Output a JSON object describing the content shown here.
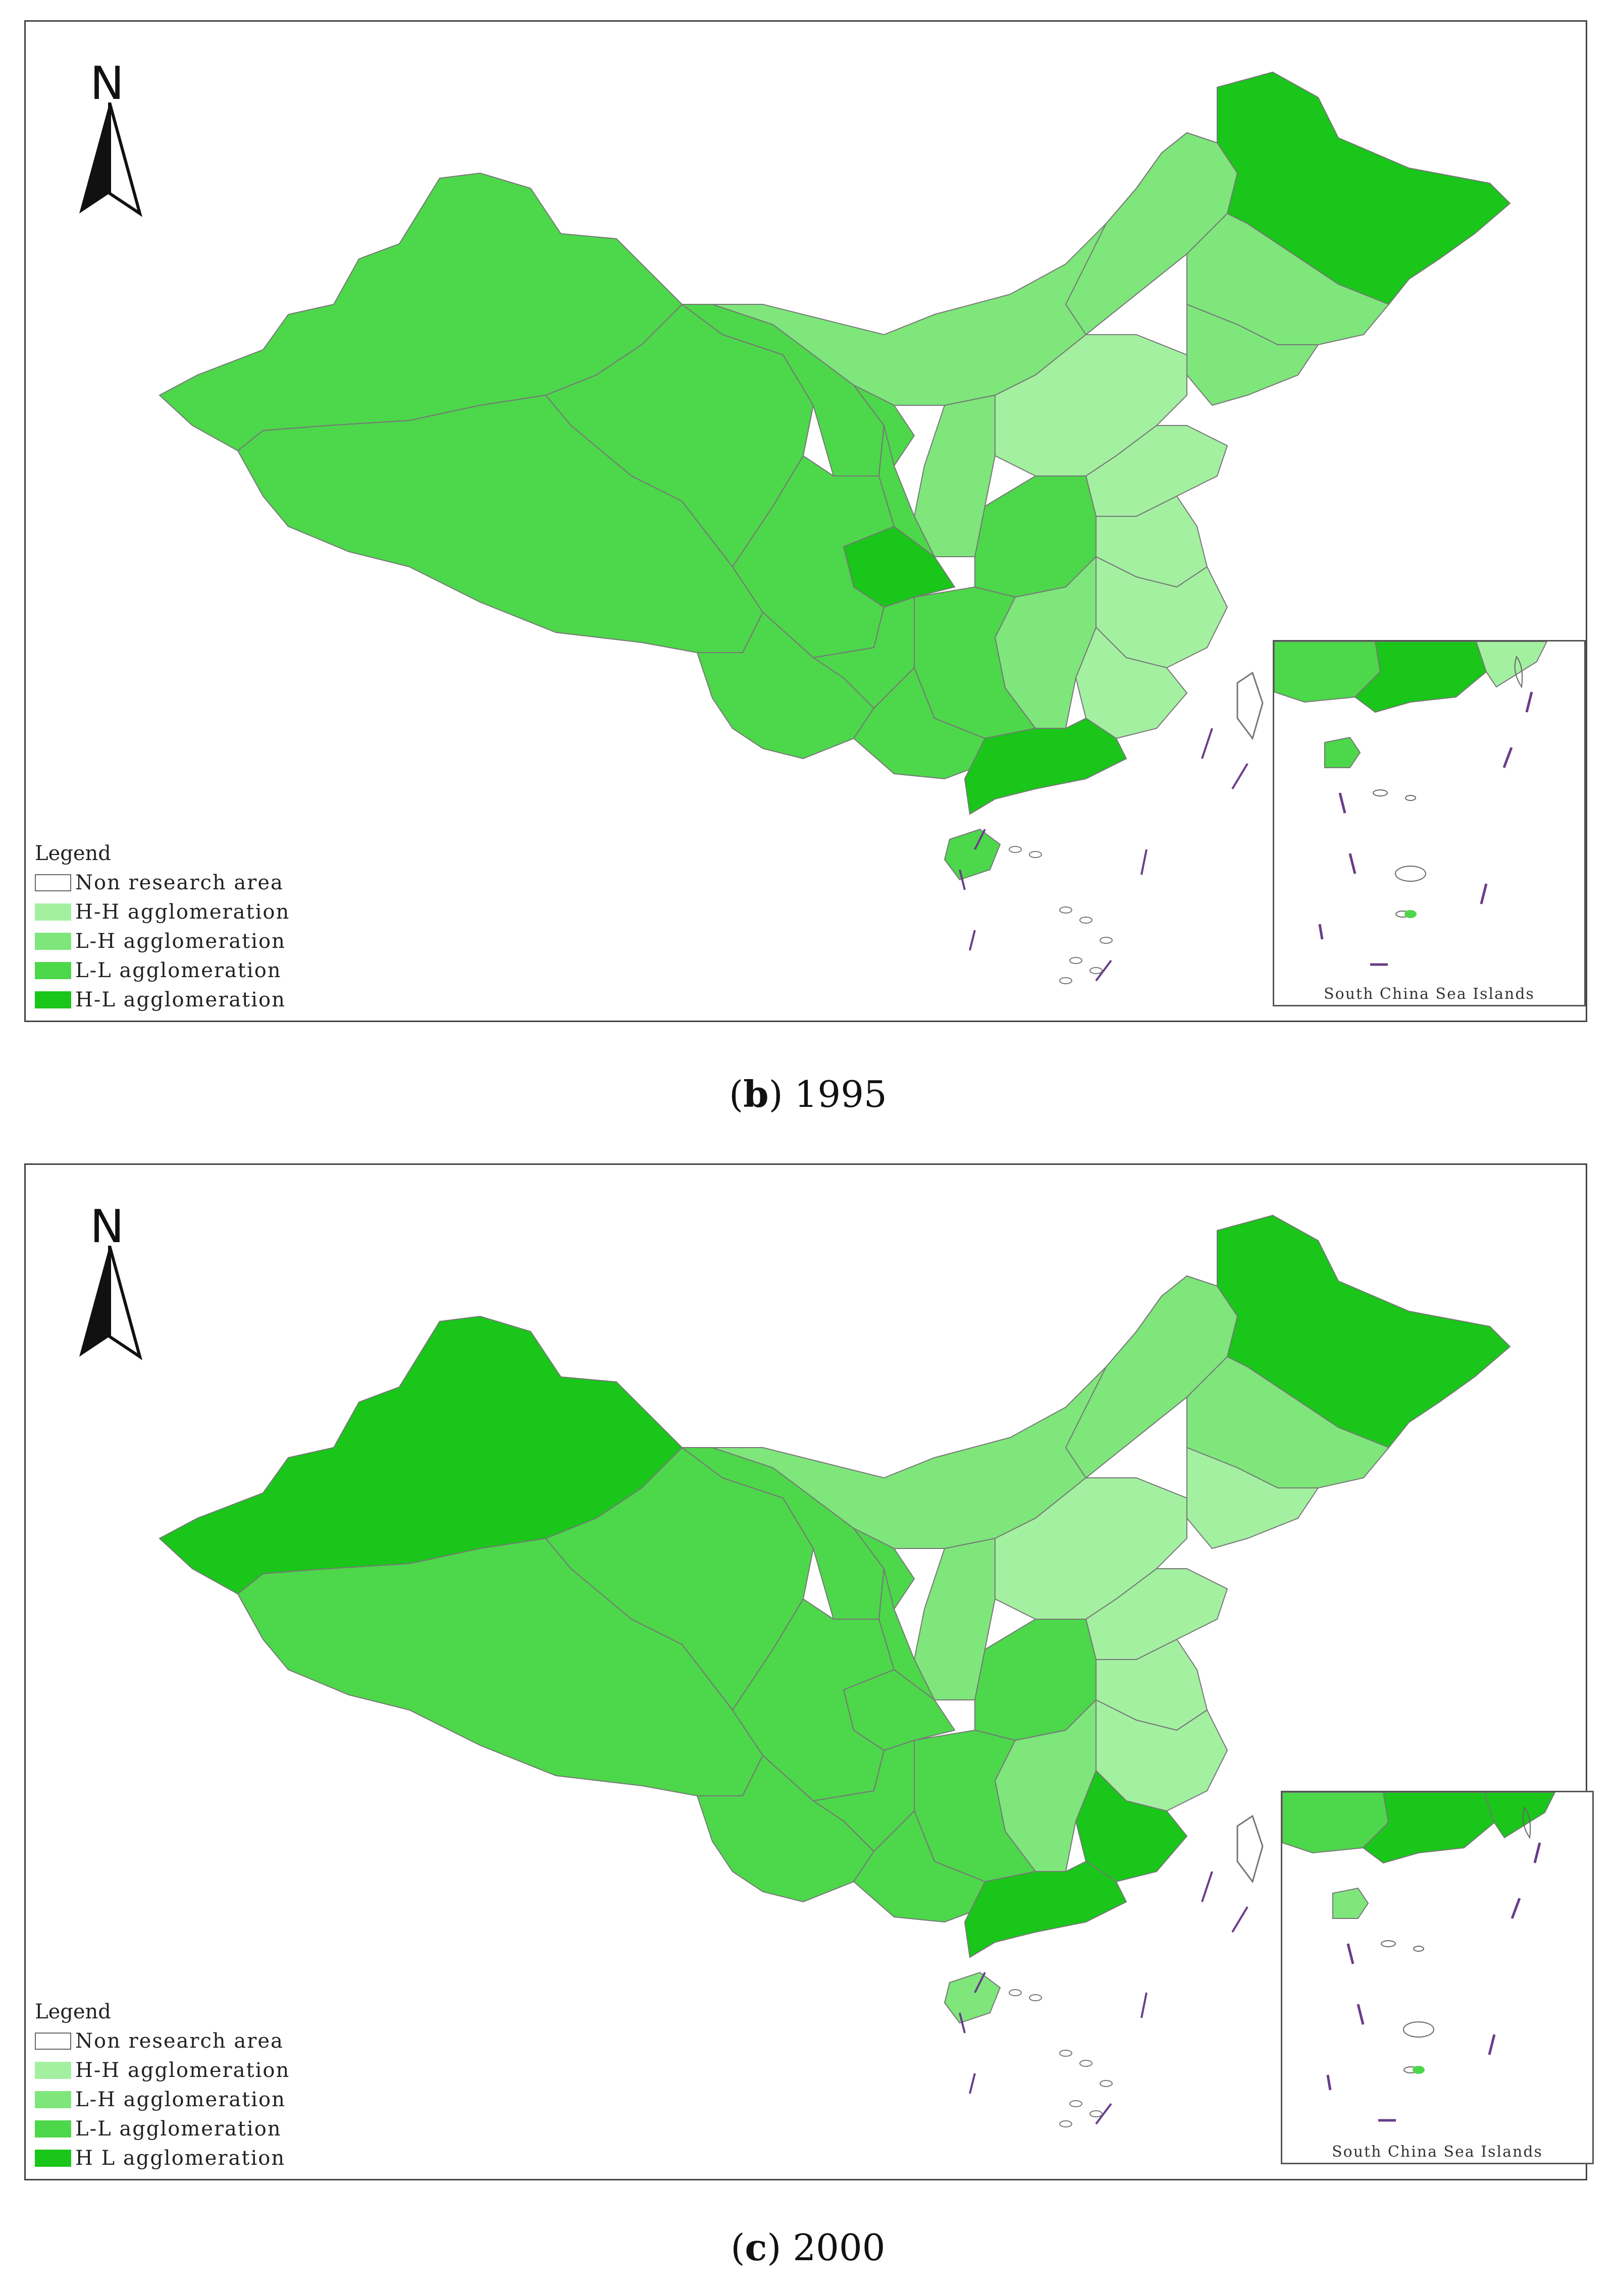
{
  "colors": {
    "non_research": "#ffffff",
    "hh": "#a3f0a1",
    "lh": "#7ee67b",
    "ll": "#4dd74b",
    "hl": "#19c619",
    "border": "#777777",
    "island_line": "#6a3d8a"
  },
  "panels": [
    {
      "caption_letter": "b",
      "caption_year": "1995",
      "north_label": "N",
      "legend": {
        "title": "Legend",
        "items": [
          {
            "label": "Non research area",
            "color": "#ffffff"
          },
          {
            "label": "H-H agglomeration",
            "color": "#a3f0a1"
          },
          {
            "label": "L-H agglomeration",
            "color": "#7ee67b"
          },
          {
            "label": "L-L agglomeration",
            "color": "#4dd74b"
          },
          {
            "label": "H-L agglomeration",
            "color": "#19c619"
          }
        ]
      },
      "inset_caption": "South China Sea Islands",
      "regions": {
        "xinjiang": "L-L",
        "tibet": "L-L",
        "qinghai": "L-L",
        "gansu": "L-L",
        "inner_mongolia": "L-H",
        "heilongjiang": "H-L",
        "heilongjiang_west": "L-H",
        "jilin": "L-H",
        "liaoning": "L-H",
        "hebei": "H-H",
        "shandong": "H-H",
        "jiangsu": "H-H",
        "zhejiang": "H-H",
        "fujian": "H-H",
        "guangdong": "H-L",
        "chongqing": "H-L",
        "sichuan": "L-L",
        "yunnan": "L-L",
        "hunan": "L-L",
        "jiangxi": "L-H",
        "hainan": "L-L",
        "henan": "L-L",
        "shanxi": "L-H"
      }
    },
    {
      "caption_letter": "c",
      "caption_year": "2000",
      "north_label": "N",
      "legend": {
        "title": "Legend",
        "items": [
          {
            "label": "Non research area",
            "color": "#ffffff"
          },
          {
            "label": "H-H agglomeration",
            "color": "#a3f0a1"
          },
          {
            "label": "L-H agglomeration",
            "color": "#7ee67b"
          },
          {
            "label": "L-L agglomeration",
            "color": "#4dd74b"
          },
          {
            "label": "H L agglomeration",
            "color": "#19c619"
          }
        ]
      },
      "inset_caption": "South China Sea Islands",
      "regions": {
        "xinjiang": "H-L",
        "tibet": "L-L",
        "qinghai": "L-L",
        "gansu": "L-L",
        "inner_mongolia": "L-H",
        "heilongjiang": "H-L",
        "heilongjiang_west": "L-H",
        "jilin": "L-H",
        "liaoning": "H-H",
        "hebei": "H-H",
        "shandong": "H-H",
        "jiangsu": "H-H",
        "zhejiang": "H-H",
        "fujian": "H-L",
        "guangdong": "H-L",
        "chongqing": "L-L",
        "sichuan": "L-L",
        "yunnan": "L-L",
        "hunan": "L-L",
        "jiangxi": "L-H",
        "hainan": "L-H",
        "henan": "L-L",
        "shanxi": "L-H"
      }
    }
  ]
}
